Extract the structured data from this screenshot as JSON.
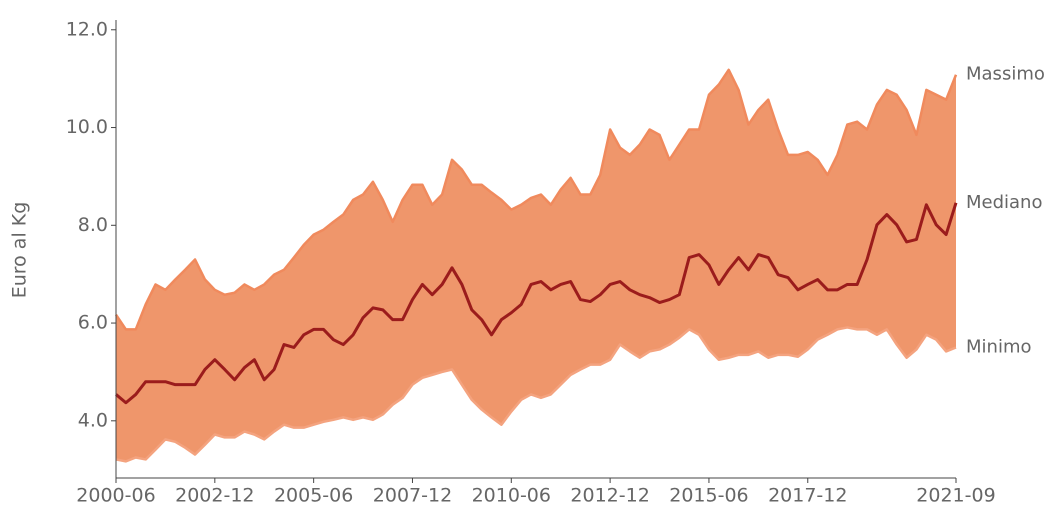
{
  "chart_data": {
    "type": "area",
    "y_label": "Euro al Kg",
    "x": [
      "2000-06",
      "2000-09",
      "2000-12",
      "2001-03",
      "2001-06",
      "2001-09",
      "2001-12",
      "2002-03",
      "2002-06",
      "2002-09",
      "2002-12",
      "2003-03",
      "2003-06",
      "2003-09",
      "2003-12",
      "2004-03",
      "2004-06",
      "2004-09",
      "2004-12",
      "2005-03",
      "2005-06",
      "2005-09",
      "2005-12",
      "2006-03",
      "2006-06",
      "2006-09",
      "2006-12",
      "2007-03",
      "2007-06",
      "2007-09",
      "2007-12",
      "2008-03",
      "2008-06",
      "2008-09",
      "2008-12",
      "2009-03",
      "2009-06",
      "2009-09",
      "2009-12",
      "2010-03",
      "2010-06",
      "2010-09",
      "2010-12",
      "2011-03",
      "2011-06",
      "2011-09",
      "2011-12",
      "2012-03",
      "2012-06",
      "2012-09",
      "2012-12",
      "2013-03",
      "2013-06",
      "2013-09",
      "2013-12",
      "2014-03",
      "2014-06",
      "2014-09",
      "2014-12",
      "2015-03",
      "2015-06",
      "2015-09",
      "2015-12",
      "2016-03",
      "2016-06",
      "2016-09",
      "2016-12",
      "2017-03",
      "2017-06",
      "2017-09",
      "2017-12",
      "2018-03",
      "2018-06",
      "2018-09",
      "2018-12",
      "2019-03",
      "2019-06",
      "2019-09",
      "2019-12",
      "2020-03",
      "2020-06",
      "2020-09",
      "2020-12",
      "2021-03",
      "2021-06",
      "2021-09"
    ],
    "series": [
      {
        "name": "Massimo",
        "color": "#f08a5d",
        "values": [
          6.17,
          5.87,
          5.87,
          6.38,
          6.79,
          6.68,
          6.89,
          7.09,
          7.3,
          6.89,
          6.68,
          6.58,
          6.62,
          6.79,
          6.68,
          6.79,
          6.99,
          7.09,
          7.34,
          7.6,
          7.81,
          7.91,
          8.07,
          8.22,
          8.52,
          8.63,
          8.89,
          8.52,
          8.07,
          8.52,
          8.83,
          8.83,
          8.42,
          8.63,
          9.34,
          9.14,
          8.83,
          8.83,
          8.67,
          8.52,
          8.32,
          8.42,
          8.56,
          8.63,
          8.42,
          8.73,
          8.97,
          8.63,
          8.63,
          9.03,
          9.96,
          9.59,
          9.44,
          9.65,
          9.96,
          9.85,
          9.34,
          9.65,
          9.96,
          9.96,
          10.67,
          10.88,
          11.18,
          10.77,
          10.06,
          10.36,
          10.57,
          9.96,
          9.44,
          9.44,
          9.5,
          9.34,
          9.03,
          9.44,
          10.06,
          10.12,
          9.96,
          10.47,
          10.77,
          10.67,
          10.36,
          9.85,
          10.77,
          10.67,
          10.57,
          11.08
        ]
      },
      {
        "name": "Mediano",
        "color": "#9b1c1c",
        "values": [
          4.54,
          4.37,
          4.54,
          4.8,
          4.8,
          4.8,
          4.74,
          4.74,
          4.74,
          5.05,
          5.25,
          5.05,
          4.84,
          5.09,
          5.25,
          4.84,
          5.05,
          5.56,
          5.5,
          5.76,
          5.87,
          5.87,
          5.66,
          5.56,
          5.76,
          6.11,
          6.31,
          6.27,
          6.07,
          6.07,
          6.48,
          6.79,
          6.58,
          6.79,
          7.13,
          6.79,
          6.27,
          6.07,
          5.76,
          6.07,
          6.21,
          6.38,
          6.79,
          6.85,
          6.68,
          6.79,
          6.85,
          6.48,
          6.44,
          6.58,
          6.79,
          6.85,
          6.68,
          6.58,
          6.52,
          6.42,
          6.48,
          6.58,
          7.34,
          7.4,
          7.19,
          6.79,
          7.09,
          7.34,
          7.09,
          7.4,
          7.34,
          6.99,
          6.93,
          6.68,
          6.79,
          6.89,
          6.68,
          6.68,
          6.79,
          6.79,
          7.3,
          8.01,
          8.22,
          8.01,
          7.66,
          7.71,
          8.42,
          8.01,
          7.81,
          8.46
        ]
      },
      {
        "name": "Minimo",
        "color": "#f4a37f",
        "values": [
          3.21,
          3.17,
          3.25,
          3.21,
          3.41,
          3.62,
          3.57,
          3.45,
          3.31,
          3.51,
          3.72,
          3.66,
          3.66,
          3.78,
          3.72,
          3.62,
          3.78,
          3.92,
          3.86,
          3.86,
          3.92,
          3.98,
          4.02,
          4.07,
          4.02,
          4.07,
          4.02,
          4.13,
          4.33,
          4.47,
          4.74,
          4.88,
          4.94,
          5.0,
          5.05,
          4.74,
          4.43,
          4.23,
          4.07,
          3.92,
          4.19,
          4.43,
          4.54,
          4.47,
          4.54,
          4.74,
          4.94,
          5.05,
          5.15,
          5.15,
          5.25,
          5.56,
          5.42,
          5.29,
          5.42,
          5.46,
          5.56,
          5.7,
          5.87,
          5.76,
          5.46,
          5.25,
          5.29,
          5.35,
          5.35,
          5.42,
          5.29,
          5.35,
          5.35,
          5.31,
          5.46,
          5.66,
          5.76,
          5.87,
          5.91,
          5.87,
          5.87,
          5.76,
          5.87,
          5.56,
          5.29,
          5.46,
          5.76,
          5.66,
          5.42,
          5.5
        ]
      }
    ],
    "band_color": "#ef966b",
    "ylim": [
      2.83,
      12.2
    ],
    "yticks": [
      {
        "value": 4,
        "label": "4.0"
      },
      {
        "value": 6,
        "label": "6.0"
      },
      {
        "value": 8,
        "label": "8.0"
      },
      {
        "value": 10,
        "label": "10.0"
      },
      {
        "value": 12,
        "label": "12.0"
      }
    ],
    "xticks": [
      "2000-06",
      "2002-12",
      "2005-06",
      "2007-12",
      "2010-06",
      "2012-12",
      "2015-06",
      "2017-12",
      "2021-09"
    ]
  }
}
